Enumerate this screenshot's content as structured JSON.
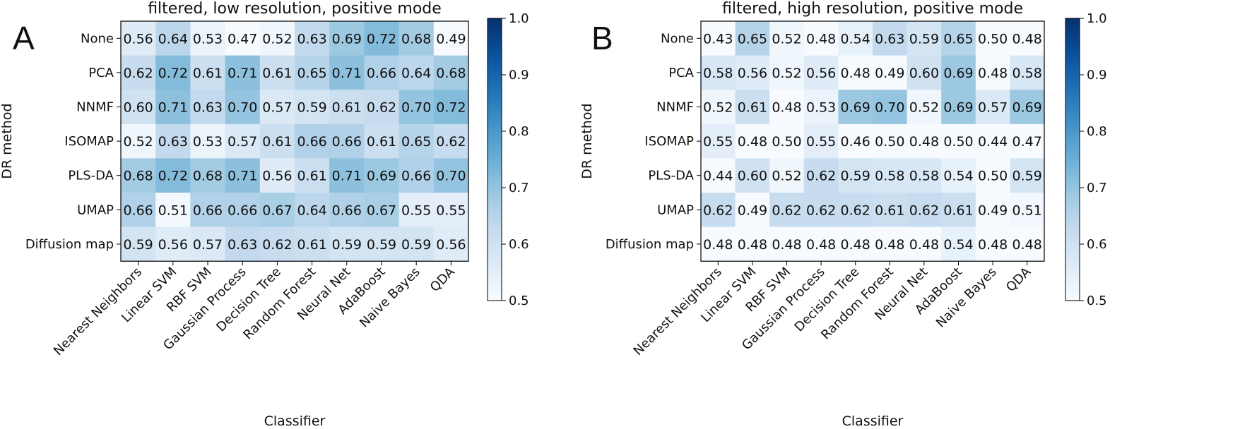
{
  "chart_data": [
    {
      "type": "heatmap",
      "panel_label": "A",
      "title": "filtered, low resolution, positive mode",
      "xlabel": "Classifier",
      "ylabel": "DR method",
      "x_categories": [
        "Nearest Neighbors",
        "Linear SVM",
        "RBF SVM",
        "Gaussian Process",
        "Decision Tree",
        "Random Forest",
        "Neural Net",
        "AdaBoost",
        "Naive Bayes",
        "QDA"
      ],
      "y_categories": [
        "None",
        "PCA",
        "NNMF",
        "ISOMAP",
        "PLS-DA",
        "UMAP",
        "Diffusion map"
      ],
      "values": [
        [
          0.56,
          0.64,
          0.53,
          0.47,
          0.52,
          0.63,
          0.69,
          0.72,
          0.68,
          0.49
        ],
        [
          0.62,
          0.72,
          0.61,
          0.71,
          0.61,
          0.65,
          0.71,
          0.66,
          0.64,
          0.68
        ],
        [
          0.6,
          0.71,
          0.63,
          0.7,
          0.57,
          0.59,
          0.61,
          0.62,
          0.7,
          0.72
        ],
        [
          0.52,
          0.63,
          0.53,
          0.57,
          0.61,
          0.66,
          0.66,
          0.61,
          0.65,
          0.62
        ],
        [
          0.68,
          0.72,
          0.68,
          0.71,
          0.56,
          0.61,
          0.71,
          0.69,
          0.66,
          0.7
        ],
        [
          0.66,
          0.51,
          0.66,
          0.66,
          0.67,
          0.64,
          0.66,
          0.67,
          0.55,
          0.55
        ],
        [
          0.59,
          0.56,
          0.57,
          0.63,
          0.62,
          0.61,
          0.59,
          0.59,
          0.59,
          0.56
        ]
      ],
      "colorbar": {
        "min": 0.5,
        "max": 1.0,
        "ticks": [
          "0.5",
          "0.6",
          "0.7",
          "0.8",
          "0.9",
          "1.0"
        ],
        "colormap": "Blues"
      }
    },
    {
      "type": "heatmap",
      "panel_label": "B",
      "title": "filtered, high resolution, positive mode",
      "xlabel": "Classifier",
      "ylabel": "DR method",
      "x_categories": [
        "Nearest Neighbors",
        "Linear SVM",
        "RBF SVM",
        "Gaussian Process",
        "Decision Tree",
        "Random Forest",
        "Neural Net",
        "AdaBoost",
        "Naive Bayes",
        "QDA"
      ],
      "y_categories": [
        "None",
        "PCA",
        "NNMF",
        "ISOMAP",
        "PLS-DA",
        "UMAP",
        "Diffusion map"
      ],
      "values": [
        [
          0.43,
          0.65,
          0.52,
          0.48,
          0.54,
          0.63,
          0.59,
          0.65,
          0.5,
          0.48
        ],
        [
          0.58,
          0.56,
          0.52,
          0.56,
          0.48,
          0.49,
          0.6,
          0.69,
          0.48,
          0.58
        ],
        [
          0.52,
          0.61,
          0.48,
          0.53,
          0.69,
          0.7,
          0.52,
          0.69,
          0.57,
          0.69
        ],
        [
          0.55,
          0.48,
          0.5,
          0.55,
          0.46,
          0.5,
          0.48,
          0.5,
          0.44,
          0.47
        ],
        [
          0.44,
          0.6,
          0.52,
          0.62,
          0.59,
          0.58,
          0.58,
          0.54,
          0.5,
          0.59
        ],
        [
          0.62,
          0.49,
          0.62,
          0.62,
          0.62,
          0.61,
          0.62,
          0.61,
          0.49,
          0.51
        ],
        [
          0.48,
          0.48,
          0.48,
          0.48,
          0.48,
          0.48,
          0.48,
          0.54,
          0.48,
          0.48
        ]
      ],
      "colorbar": {
        "min": 0.5,
        "max": 1.0,
        "ticks": [
          "0.5",
          "0.6",
          "0.7",
          "0.8",
          "0.9",
          "1.0"
        ],
        "colormap": "Blues"
      }
    }
  ]
}
